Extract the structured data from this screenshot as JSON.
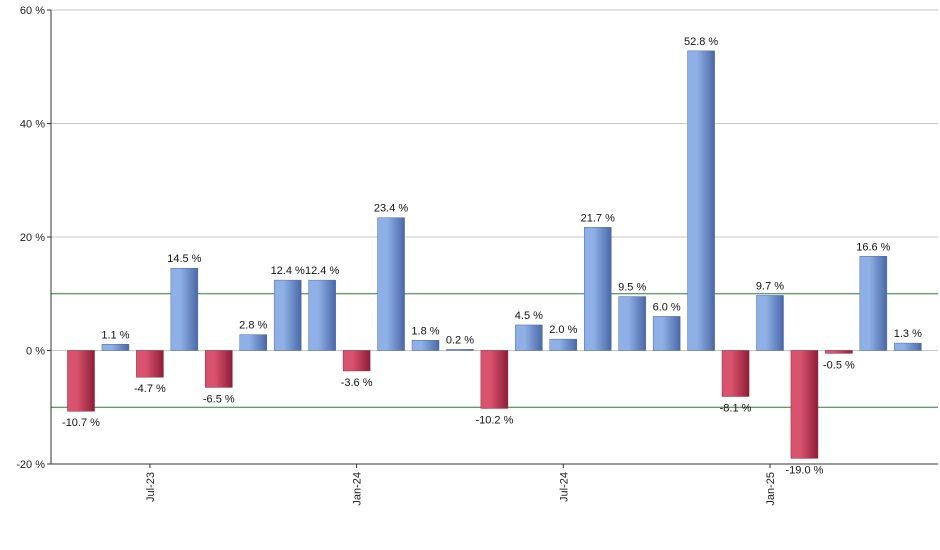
{
  "chart_data": {
    "type": "bar",
    "title": "",
    "xlabel": "",
    "ylabel": "",
    "ylim": [
      -20,
      60
    ],
    "yticks": [
      -20,
      0,
      20,
      40,
      60
    ],
    "ytick_labels": [
      "-20 %",
      "0 %",
      "20 %",
      "40 %",
      "60 %"
    ],
    "grid": true,
    "reference_lines": [
      10,
      -10
    ],
    "xtick_labels": [
      {
        "label": "Jul-23",
        "index": 2
      },
      {
        "label": "Jan-24",
        "index": 8
      },
      {
        "label": "Jul-24",
        "index": 14
      },
      {
        "label": "Jan-25",
        "index": 20
      }
    ],
    "values": [
      -10.7,
      1.1,
      -4.7,
      14.5,
      -6.5,
      2.8,
      12.4,
      12.4,
      -3.6,
      23.4,
      1.8,
      0.2,
      -10.2,
      4.5,
      2.0,
      21.7,
      9.5,
      6.0,
      52.8,
      -8.1,
      9.7,
      -19.0,
      -0.5,
      16.6,
      1.3
    ],
    "data_labels": [
      "-10.7 %",
      "1.1 %",
      "-4.7 %",
      "14.5 %",
      "-6.5 %",
      "2.8 %",
      "12.4 %",
      "12.4 %",
      "-3.6 %",
      "23.4 %",
      "1.8 %",
      "0.2 %",
      "-10.2 %",
      "4.5 %",
      "2.0 %",
      "21.7 %",
      "9.5 %",
      "6.0 %",
      "52.8 %",
      "-8.1 %",
      "9.7 %",
      "-19.0 %",
      "-0.5 %",
      "16.6 %",
      "1.3 %"
    ],
    "colors": {
      "positive": "#8fb0e6",
      "positive_dark": "#4a68a8",
      "negative": "#d9526e",
      "negative_dark": "#8e1e38",
      "gridline": "#c8c8c8",
      "reference_line": "#2e7d32",
      "axis": "#333333"
    }
  }
}
